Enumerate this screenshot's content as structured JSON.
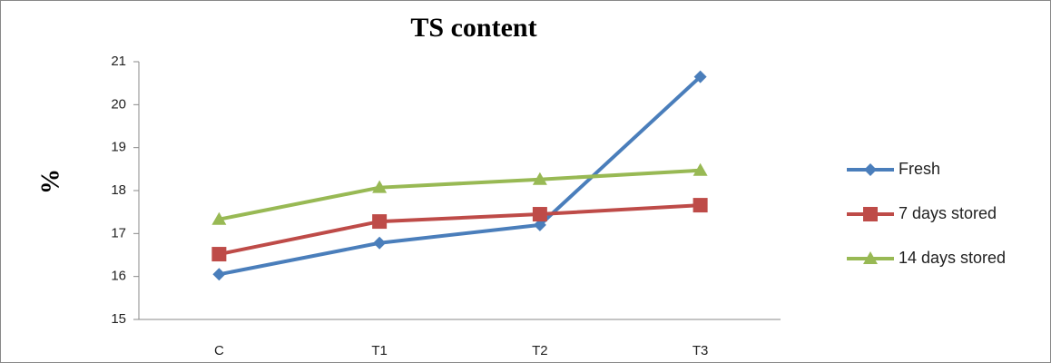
{
  "chart_data": {
    "type": "line",
    "title": "TS content",
    "y_label": "%",
    "categories": [
      "C",
      "T1",
      "T2",
      "T3"
    ],
    "series": [
      {
        "name": "Fresh",
        "color": "#4a7ebb",
        "marker": "diamond",
        "values": [
          16.05,
          16.78,
          17.2,
          20.65
        ]
      },
      {
        "name": "7 days stored",
        "color": "#be4b48",
        "marker": "square",
        "values": [
          16.52,
          17.28,
          17.45,
          17.66
        ]
      },
      {
        "name": "14 days stored",
        "color": "#98b954",
        "marker": "triangle",
        "values": [
          17.33,
          18.07,
          18.26,
          18.47
        ]
      }
    ],
    "ylim": [
      15,
      21
    ],
    "yticks": [
      15,
      16,
      17,
      18,
      19,
      20,
      21
    ],
    "grid": false,
    "legend": "right"
  }
}
